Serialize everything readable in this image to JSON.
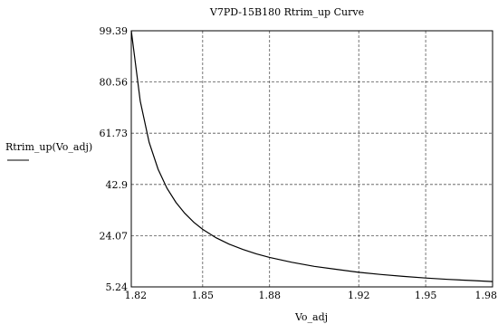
{
  "chart_data": {
    "type": "line",
    "title": "V7PD-15B180 Rtrim_up Curve",
    "xlabel": "Vo_adj",
    "ylabel": "Rtrim_up(Vo_adj)",
    "xlim": [
      1.818,
      1.98
    ],
    "ylim": [
      5.24,
      99.39
    ],
    "xticks": [
      1.82,
      1.85,
      1.88,
      1.92,
      1.95,
      1.98
    ],
    "xtick_labels": [
      "1.82",
      "1.85",
      "1.88",
      "1.92",
      "1.95",
      "1.98"
    ],
    "yticks": [
      5.24,
      24.07,
      42.9,
      61.73,
      80.56,
      99.39
    ],
    "ytick_labels": [
      "5.24",
      "24.07",
      "42.9",
      "61.73",
      "80.56",
      "99.39"
    ],
    "grid": true,
    "legend": "left",
    "series": [
      {
        "name": "Rtrim_up(Vo_adj)",
        "x": [
          1.818,
          1.822,
          1.826,
          1.83,
          1.834,
          1.838,
          1.842,
          1.846,
          1.85,
          1.856,
          1.862,
          1.868,
          1.874,
          1.88,
          1.89,
          1.9,
          1.91,
          1.92,
          1.93,
          1.94,
          1.95,
          1.96,
          1.97,
          1.98
        ],
        "y": [
          99.39,
          73.5,
          58.4,
          48.5,
          41.5,
          36.3,
          32.3,
          29.0,
          26.4,
          23.3,
          20.9,
          19.0,
          17.4,
          16.1,
          14.3,
          12.8,
          11.7,
          10.6,
          9.8,
          9.1,
          8.5,
          8.0,
          7.6,
          7.2
        ]
      }
    ]
  }
}
